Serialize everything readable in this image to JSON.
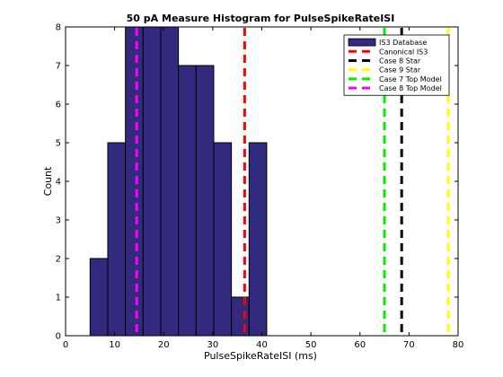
{
  "chart_data": {
    "type": "bar",
    "title": "50 pA Measure Histogram for PulseSpikeRateISI",
    "xlabel": "PulseSpikeRateISI (ms)",
    "ylabel": "Count",
    "xlim": [
      0,
      80
    ],
    "ylim": [
      0,
      8
    ],
    "xticks": [
      "0",
      "10",
      "20",
      "30",
      "40",
      "50",
      "60",
      "70",
      "80"
    ],
    "yticks": [
      "0",
      "1",
      "2",
      "3",
      "4",
      "5",
      "6",
      "7",
      "8"
    ],
    "grid": false,
    "legend_position": "top-right",
    "histogram": {
      "name": "IS3 Database",
      "color": "#312a7e",
      "bins": [
        {
          "x0": 5.0,
          "x1": 8.6,
          "count": 2
        },
        {
          "x0": 8.6,
          "x1": 12.2,
          "count": 5
        },
        {
          "x0": 12.2,
          "x1": 15.8,
          "count": 8
        },
        {
          "x0": 15.8,
          "x1": 19.4,
          "count": 8
        },
        {
          "x0": 19.4,
          "x1": 23.0,
          "count": 8
        },
        {
          "x0": 23.0,
          "x1": 26.6,
          "count": 7
        },
        {
          "x0": 26.6,
          "x1": 30.2,
          "count": 7
        },
        {
          "x0": 30.2,
          "x1": 33.8,
          "count": 5
        },
        {
          "x0": 33.8,
          "x1": 37.4,
          "count": 1
        },
        {
          "x0": 37.4,
          "x1": 41.0,
          "count": 5
        }
      ]
    },
    "vlines": [
      {
        "name": "Canonical IS3",
        "x": 36.5,
        "color": "#ff0000"
      },
      {
        "name": "Case 8 Star",
        "x": 68.5,
        "color": "#000000"
      },
      {
        "name": "Case 9 Star",
        "x": 78.0,
        "color": "#ffff00"
      },
      {
        "name": "Case 7 Top Model",
        "x": 65.0,
        "color": "#00ee00"
      },
      {
        "name": "Case 8 Top Model",
        "x": 14.5,
        "color": "#ff00ff"
      }
    ]
  }
}
